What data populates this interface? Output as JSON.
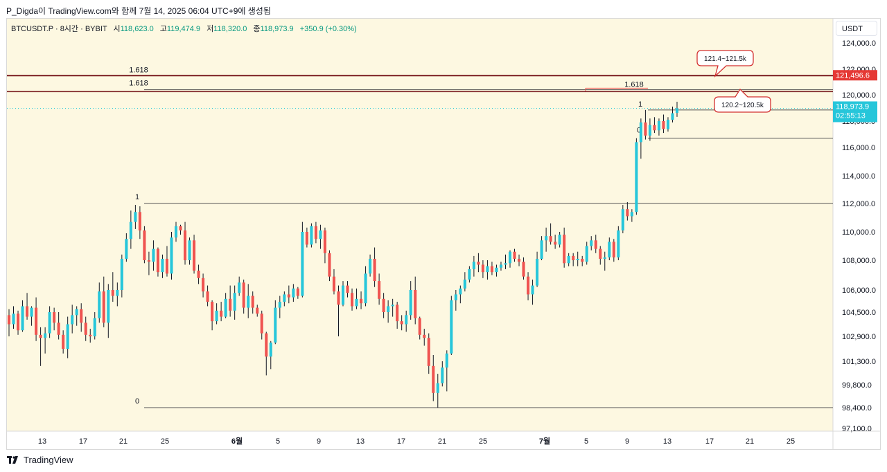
{
  "header": {
    "caption": "P_Digda이 TradingView.com와 함께 7월 14, 2025 06:04 UTC+9에 생성됨"
  },
  "legend": {
    "symbol": "BTCUSDT.P · 8시간 · BYBIT",
    "open_label": "시",
    "open": "118,623.0",
    "high_label": "고",
    "high": "119,474.9",
    "low_label": "저",
    "low": "118,320.0",
    "close_label": "종",
    "close": "118,973.9",
    "change": "+350.9 (+0.30%)"
  },
  "axis_unit": "USDT",
  "footer": {
    "brand": "TradingView"
  },
  "colors": {
    "background": "#fdf8e1",
    "up": "#26c6da",
    "down": "#ef5350",
    "fib_line": "#555555",
    "resistance": "#7a1c20",
    "callout": "#d32f2f",
    "last_price_badge": "#26c6da",
    "resistance_badge": "#e53935"
  },
  "chart_data": {
    "type": "candlestick",
    "timeframe": "8h",
    "price_labels": [
      "124,000.0",
      "122,000.0",
      "120,000.0",
      "118,000.0",
      "116,000.0",
      "114,000.0",
      "112,000.0",
      "110,000.0",
      "108,000.0",
      "106,000.0",
      "104,500.0",
      "102,900.0",
      "101,300.0",
      "99,800.0",
      "98,400.0",
      "97,100.0"
    ],
    "time_labels": [
      "13",
      "17",
      "21",
      "25",
      "6월",
      "5",
      "9",
      "13",
      "17",
      "21",
      "25",
      "7월",
      "5",
      "9",
      "13",
      "17",
      "21",
      "25"
    ],
    "last_price": {
      "value": "118,973.9",
      "countdown": "02:55:13"
    },
    "resistance_price": "121,496.6",
    "fib_levels": [
      {
        "label": "1",
        "price": 112000
      },
      {
        "label": "0",
        "price": 98400
      },
      {
        "label": "1.618",
        "price": 120400
      },
      {
        "label": "1.618",
        "price": 121500
      },
      {
        "label": "1",
        "price": 118850
      },
      {
        "label": "0",
        "price": 116700
      },
      {
        "label": "1.618",
        "price": 120250
      }
    ],
    "horizontal_lines": [
      121500,
      120250
    ],
    "annotations": [
      "121.4~121.5k",
      "120.2~120.5k"
    ],
    "candles": [
      [
        104300,
        104700,
        102900,
        103700
      ],
      [
        103700,
        104900,
        103400,
        104400
      ],
      [
        104400,
        104600,
        103000,
        103300
      ],
      [
        103300,
        105300,
        103200,
        104900
      ],
      [
        104900,
        105800,
        104000,
        104200
      ],
      [
        104200,
        104900,
        103600,
        104800
      ],
      [
        104800,
        105500,
        102600,
        103000
      ],
      [
        103000,
        103500,
        101000,
        102800
      ],
      [
        102800,
        103500,
        101800,
        103100
      ],
      [
        103100,
        104900,
        102800,
        104500
      ],
      [
        104500,
        104800,
        103300,
        103800
      ],
      [
        103800,
        104500,
        102700,
        103000
      ],
      [
        103000,
        103300,
        101800,
        102100
      ],
      [
        102100,
        104200,
        101500,
        103700
      ],
      [
        103700,
        105000,
        103100,
        104300
      ],
      [
        104300,
        104900,
        103600,
        104700
      ],
      [
        104700,
        105100,
        103200,
        103800
      ],
      [
        103800,
        104200,
        102600,
        103000
      ],
      [
        103000,
        103400,
        102500,
        102900
      ],
      [
        102900,
        104500,
        102700,
        104100
      ],
      [
        104100,
        106500,
        103800,
        105900
      ],
      [
        105900,
        106900,
        103500,
        103800
      ],
      [
        103800,
        106400,
        102800,
        106000
      ],
      [
        106000,
        107200,
        105200,
        105600
      ],
      [
        105600,
        106500,
        104900,
        106000
      ],
      [
        106000,
        108400,
        105500,
        108100
      ],
      [
        108100,
        109900,
        107900,
        109500
      ],
      [
        109500,
        111500,
        108800,
        110700
      ],
      [
        110700,
        111900,
        110200,
        111400
      ],
      [
        111400,
        111800,
        109500,
        110100
      ],
      [
        110100,
        110400,
        107800,
        108000
      ],
      [
        108000,
        108600,
        107000,
        107900
      ],
      [
        107900,
        109400,
        107300,
        108800
      ],
      [
        108800,
        108900,
        106900,
        107200
      ],
      [
        107200,
        108400,
        106800,
        108100
      ],
      [
        108100,
        109000,
        106900,
        107100
      ],
      [
        107100,
        110000,
        106700,
        109600
      ],
      [
        109600,
        110700,
        109300,
        110400
      ],
      [
        110400,
        110500,
        109800,
        110100
      ],
      [
        110100,
        110700,
        107700,
        108000
      ],
      [
        108000,
        109600,
        107700,
        109400
      ],
      [
        109400,
        109800,
        107100,
        107300
      ],
      [
        107300,
        107700,
        106400,
        106800
      ],
      [
        106800,
        107100,
        105500,
        105900
      ],
      [
        105900,
        106300,
        104900,
        105200
      ],
      [
        105200,
        105300,
        103300,
        103900
      ],
      [
        103900,
        105100,
        103700,
        104600
      ],
      [
        104600,
        105200,
        103900,
        104200
      ],
      [
        104200,
        105800,
        104100,
        105400
      ],
      [
        105400,
        106300,
        104200,
        104600
      ],
      [
        104600,
        106300,
        104000,
        105800
      ],
      [
        105800,
        106900,
        105600,
        106500
      ],
      [
        106500,
        106700,
        104400,
        104800
      ],
      [
        104800,
        106400,
        104100,
        105600
      ],
      [
        105600,
        105900,
        104400,
        104800
      ],
      [
        104800,
        105000,
        104200,
        104400
      ],
      [
        104400,
        104600,
        102700,
        103100
      ],
      [
        103100,
        103200,
        100400,
        101600
      ],
      [
        101600,
        102600,
        100800,
        102500
      ],
      [
        102500,
        105300,
        102400,
        104800
      ],
      [
        104800,
        105600,
        104100,
        105200
      ],
      [
        105200,
        105900,
        104900,
        105700
      ],
      [
        105700,
        106300,
        105100,
        105500
      ],
      [
        105500,
        106400,
        105200,
        106100
      ],
      [
        106100,
        106200,
        105400,
        105600
      ],
      [
        105600,
        110700,
        105500,
        110000
      ],
      [
        110000,
        110300,
        108900,
        109100
      ],
      [
        109100,
        110600,
        108900,
        110400
      ],
      [
        110400,
        110700,
        109200,
        109500
      ],
      [
        109500,
        110500,
        108800,
        110100
      ],
      [
        110100,
        110300,
        107800,
        108500
      ],
      [
        108500,
        108700,
        106600,
        106900
      ],
      [
        106900,
        107400,
        105700,
        105900
      ],
      [
        105900,
        106300,
        102900,
        105000
      ],
      [
        105000,
        106600,
        104900,
        106300
      ],
      [
        106300,
        106600,
        105500,
        105800
      ],
      [
        105800,
        106100,
        104600,
        104900
      ],
      [
        104900,
        106100,
        104700,
        105400
      ],
      [
        105400,
        105900,
        104700,
        105100
      ],
      [
        105100,
        107600,
        104900,
        107100
      ],
      [
        107100,
        108400,
        106900,
        108100
      ],
      [
        108100,
        108900,
        106200,
        106600
      ],
      [
        106600,
        107100,
        105000,
        105400
      ],
      [
        105400,
        105800,
        104100,
        104500
      ],
      [
        104500,
        105300,
        103800,
        104900
      ],
      [
        104900,
        105400,
        104200,
        105000
      ],
      [
        105000,
        105200,
        103400,
        103900
      ],
      [
        103900,
        104300,
        103300,
        103700
      ],
      [
        103700,
        104600,
        103200,
        104300
      ],
      [
        104300,
        106600,
        104000,
        106000
      ],
      [
        106000,
        106900,
        103700,
        104100
      ],
      [
        104100,
        104200,
        102700,
        103000
      ],
      [
        103000,
        103400,
        102300,
        102800
      ],
      [
        102800,
        103100,
        100500,
        101000
      ],
      [
        101000,
        101700,
        98800,
        99300
      ],
      [
        99300,
        100500,
        98400,
        99900
      ],
      [
        99900,
        101300,
        99700,
        100900
      ],
      [
        100900,
        102000,
        99400,
        101800
      ],
      [
        101800,
        105600,
        101700,
        105300
      ],
      [
        105300,
        106000,
        104600,
        105700
      ],
      [
        105700,
        106300,
        105100,
        106100
      ],
      [
        106100,
        107200,
        105900,
        106700
      ],
      [
        106700,
        107600,
        106500,
        107400
      ],
      [
        107400,
        108300,
        106900,
        107900
      ],
      [
        107900,
        108500,
        107200,
        107700
      ],
      [
        107700,
        108000,
        106800,
        107200
      ],
      [
        107200,
        108000,
        106700,
        107600
      ],
      [
        107600,
        107900,
        107000,
        107200
      ],
      [
        107200,
        107700,
        106900,
        107500
      ],
      [
        107500,
        107900,
        107300,
        107700
      ],
      [
        107700,
        108400,
        107400,
        107800
      ],
      [
        107800,
        108700,
        107500,
        108600
      ],
      [
        108600,
        108800,
        107900,
        108100
      ],
      [
        108100,
        108400,
        107600,
        107900
      ],
      [
        107900,
        108200,
        106700,
        106900
      ],
      [
        106900,
        107200,
        105300,
        105700
      ],
      [
        105700,
        106700,
        105000,
        106300
      ],
      [
        106300,
        108600,
        106200,
        108100
      ],
      [
        108100,
        109700,
        108000,
        109400
      ],
      [
        109400,
        110300,
        108600,
        109700
      ],
      [
        109700,
        110600,
        109100,
        109300
      ],
      [
        109300,
        109800,
        108800,
        109100
      ],
      [
        109100,
        110000,
        108900,
        109800
      ],
      [
        109800,
        110300,
        107500,
        107800
      ],
      [
        107800,
        108500,
        107600,
        108300
      ],
      [
        108300,
        108500,
        107600,
        108000
      ],
      [
        108000,
        108600,
        107600,
        108100
      ],
      [
        108100,
        108300,
        107600,
        107900
      ],
      [
        107900,
        109300,
        107700,
        109000
      ],
      [
        109000,
        109700,
        108700,
        109400
      ],
      [
        109400,
        109800,
        108500,
        108800
      ],
      [
        108800,
        109000,
        107700,
        108100
      ],
      [
        108100,
        108600,
        107300,
        108200
      ],
      [
        108200,
        109600,
        108000,
        109300
      ],
      [
        109300,
        109500,
        107900,
        108200
      ],
      [
        108200,
        110400,
        108000,
        110100
      ],
      [
        110100,
        111900,
        109900,
        111600
      ],
      [
        111600,
        112100,
        110800,
        111100
      ],
      [
        111100,
        111600,
        110700,
        111400
      ],
      [
        111400,
        116700,
        111200,
        116400
      ],
      [
        116400,
        118200,
        115200,
        117900
      ],
      [
        117900,
        118850,
        116600,
        116900
      ],
      [
        116900,
        118200,
        116500,
        117700
      ],
      [
        117700,
        118300,
        117100,
        117300
      ],
      [
        117300,
        118200,
        116900,
        118000
      ],
      [
        118000,
        118500,
        117100,
        117400
      ],
      [
        117400,
        118300,
        117200,
        118100
      ],
      [
        118100,
        119100,
        117900,
        118600
      ],
      [
        118623,
        119474.9,
        118320,
        118973.9
      ]
    ]
  }
}
